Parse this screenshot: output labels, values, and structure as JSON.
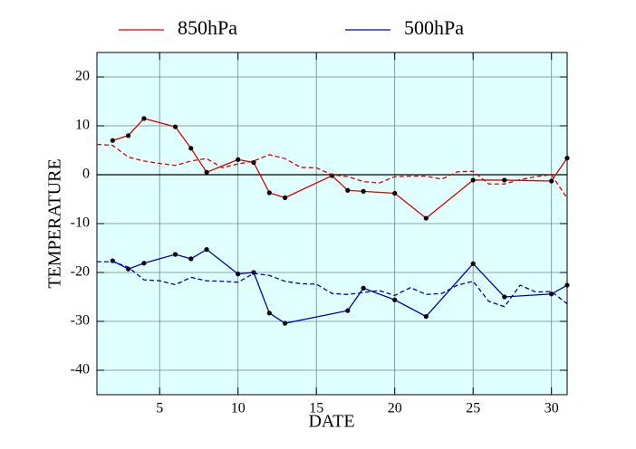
{
  "chart_data": {
    "type": "line",
    "x_label": "DATE",
    "y_label": "TEMPERATURE",
    "xlim": [
      1,
      31
    ],
    "ylim": [
      -45,
      25
    ],
    "xticks": [
      5,
      10,
      15,
      20,
      25,
      30
    ],
    "yticks": [
      -40,
      -30,
      -20,
      -10,
      0,
      10,
      20
    ],
    "grid": true,
    "zero_line": true,
    "background": "#e0ffff",
    "legend": "top",
    "series": [
      {
        "name": "850hPa",
        "color": "#dd0000",
        "markers": true,
        "x": [
          2,
          3,
          4,
          6,
          7,
          8,
          10,
          11,
          12,
          13,
          16,
          17,
          18,
          20,
          22,
          25,
          27,
          30,
          31
        ],
        "values": [
          7.0,
          8.0,
          11.5,
          9.8,
          5.4,
          0.5,
          3.1,
          2.5,
          -3.7,
          -4.7,
          -0.2,
          -3.2,
          -3.4,
          -3.8,
          -8.9,
          -1.1,
          -1.1,
          -1.3,
          3.4
        ]
      },
      {
        "color": "#dd0000",
        "dashed": true,
        "x": [
          1,
          2,
          3,
          4,
          5,
          6,
          7,
          8,
          9,
          10,
          11,
          12,
          13,
          14,
          15,
          16,
          17,
          18,
          19,
          20,
          21,
          22,
          23,
          24,
          25,
          26,
          27,
          28,
          29,
          30,
          31
        ],
        "values": [
          6.2,
          6.0,
          3.6,
          2.8,
          2.3,
          1.9,
          2.8,
          3.3,
          1.4,
          2.2,
          2.8,
          4.1,
          3.3,
          1.5,
          1.4,
          0.0,
          -0.4,
          -1.4,
          -1.7,
          -0.4,
          -0.3,
          -0.3,
          -0.9,
          0.6,
          0.7,
          -1.9,
          -1.9,
          -1.0,
          -0.4,
          0.0,
          -4.8
        ]
      },
      {
        "name": "500hPa",
        "color": "#0000bb",
        "markers": true,
        "x": [
          2,
          3,
          4,
          6,
          7,
          8,
          10,
          11,
          12,
          13,
          17,
          18,
          20,
          22,
          25,
          27,
          30,
          31
        ],
        "values": [
          -17.6,
          -19.3,
          -18.1,
          -16.3,
          -17.2,
          -15.3,
          -20.3,
          -20.0,
          -28.3,
          -30.4,
          -27.8,
          -23.2,
          -25.6,
          -29.0,
          -18.2,
          -25.0,
          -24.4,
          -22.6
        ]
      },
      {
        "color": "#0000bb",
        "dashed": true,
        "x": [
          1,
          2,
          3,
          4,
          5,
          6,
          7,
          8,
          9,
          10,
          11,
          12,
          13,
          14,
          15,
          16,
          17,
          18,
          19,
          20,
          21,
          22,
          23,
          24,
          25,
          26,
          27,
          28,
          29,
          30,
          31
        ],
        "values": [
          -17.8,
          -17.8,
          -18.9,
          -21.5,
          -21.7,
          -22.5,
          -21.0,
          -21.7,
          -21.8,
          -22.0,
          -20.2,
          -20.6,
          -21.8,
          -22.3,
          -22.4,
          -24.3,
          -24.5,
          -24.1,
          -23.7,
          -24.7,
          -23.1,
          -24.5,
          -24.3,
          -22.6,
          -21.8,
          -25.9,
          -27.0,
          -22.6,
          -24.0,
          -23.9,
          -26.4
        ]
      }
    ]
  }
}
